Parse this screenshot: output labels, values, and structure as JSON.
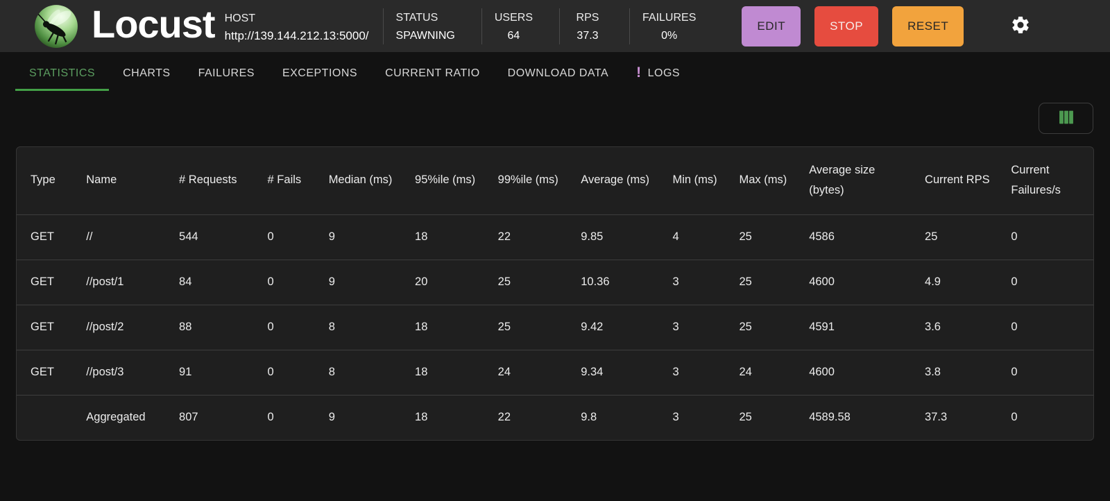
{
  "header": {
    "app_name": "Locust",
    "host_label": "HOST",
    "host_url": "http://139.144.212.13:5000/",
    "stats": [
      {
        "label": "STATUS",
        "value": "SPAWNING"
      },
      {
        "label": "USERS",
        "value": "64"
      },
      {
        "label": "RPS",
        "value": "37.3"
      },
      {
        "label": "FAILURES",
        "value": "0%"
      }
    ],
    "buttons": {
      "edit": "EDIT",
      "stop": "STOP",
      "reset": "RESET"
    }
  },
  "tabs": [
    {
      "label": "STATISTICS",
      "active": true
    },
    {
      "label": "CHARTS"
    },
    {
      "label": "FAILURES"
    },
    {
      "label": "EXCEPTIONS"
    },
    {
      "label": "CURRENT RATIO"
    },
    {
      "label": "DOWNLOAD DATA"
    },
    {
      "label": "LOGS",
      "badge": "!"
    }
  ],
  "table": {
    "columns": [
      {
        "label": "Type",
        "width": "5.1%"
      },
      {
        "label": "Name",
        "width": "8.5%"
      },
      {
        "label": "# Requests",
        "width": "8.1%"
      },
      {
        "label": "# Fails",
        "width": "5.6%"
      },
      {
        "label": "Median (ms)",
        "width": "7.9%"
      },
      {
        "label": "95%ile (ms)",
        "width": "7.6%"
      },
      {
        "label": "99%ile (ms)",
        "width": "7.6%"
      },
      {
        "label": "Average (ms)",
        "width": "8.4%"
      },
      {
        "label": "Min (ms)",
        "width": "6.1%"
      },
      {
        "label": "Max (ms)",
        "width": "6.4%"
      },
      {
        "label": "Average size (bytes)",
        "width": "10.6%"
      },
      {
        "label": "Current RPS",
        "width": "7.9%"
      },
      {
        "label": "Current Failures/s",
        "width": "8.8%"
      }
    ],
    "rows": [
      [
        "GET",
        "//",
        "544",
        "0",
        "9",
        "18",
        "22",
        "9.85",
        "4",
        "25",
        "4586",
        "25",
        "0"
      ],
      [
        "GET",
        "//post/1",
        "84",
        "0",
        "9",
        "20",
        "25",
        "10.36",
        "3",
        "25",
        "4600",
        "4.9",
        "0"
      ],
      [
        "GET",
        "//post/2",
        "88",
        "0",
        "8",
        "18",
        "25",
        "9.42",
        "3",
        "25",
        "4591",
        "3.6",
        "0"
      ],
      [
        "GET",
        "//post/3",
        "91",
        "0",
        "8",
        "18",
        "24",
        "9.34",
        "3",
        "24",
        "4600",
        "3.8",
        "0"
      ],
      [
        "",
        "Aggregated",
        "807",
        "0",
        "9",
        "18",
        "22",
        "9.8",
        "3",
        "25",
        "4589.58",
        "37.3",
        "0"
      ]
    ]
  },
  "colors": {
    "accent_green": "#5c9e60",
    "tab_underline": "#43a047",
    "edit_button": "#c08ad2",
    "stop_button": "#e64c3f",
    "reset_button": "#f2a33d",
    "logs_badge": "#ce93d8",
    "columns_icon": "#4c9950"
  }
}
